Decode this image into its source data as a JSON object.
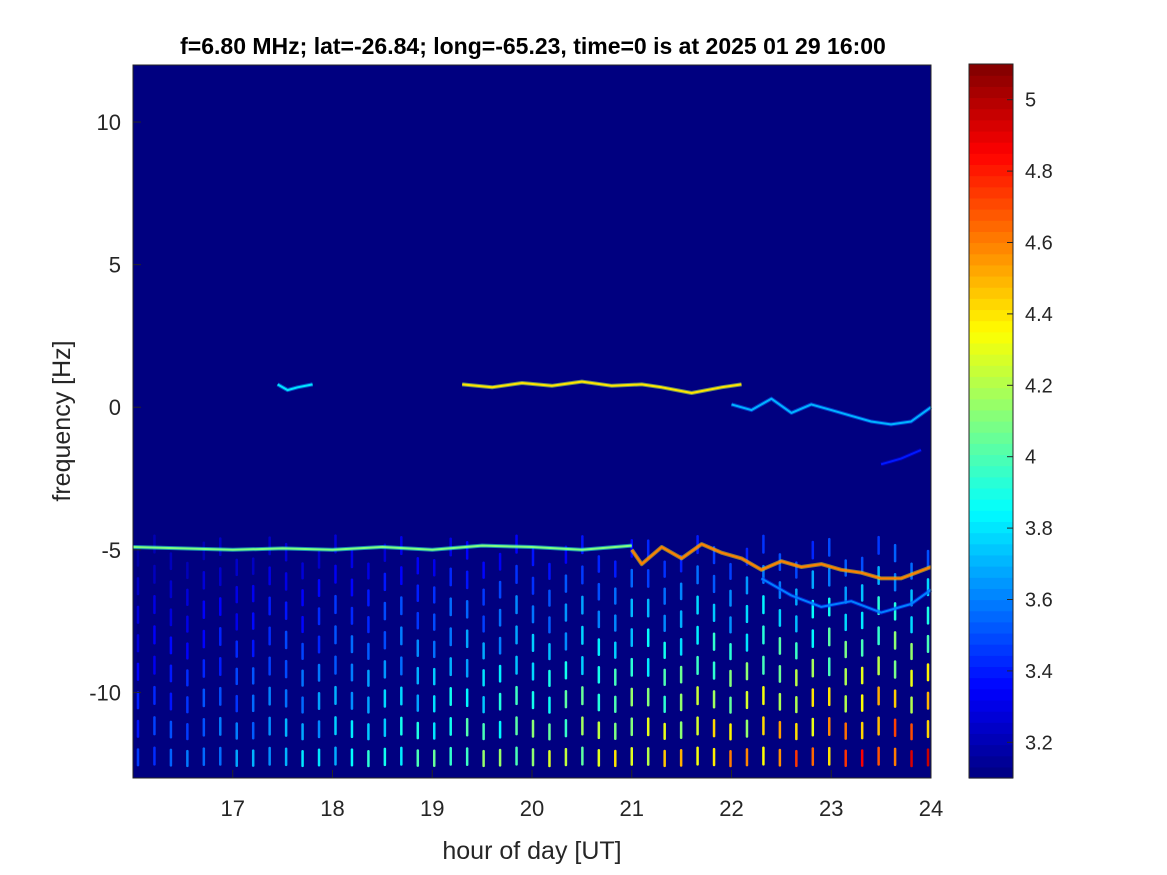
{
  "chart_data": {
    "type": "heatmap",
    "title": "f=6.80 MHz;  lat=-26.84; long=-65.23, time=0 is at 2025 01 29 16:00",
    "xlabel": "hour of day [UT]",
    "ylabel": "frequency [Hz]",
    "xlim": [
      16,
      24
    ],
    "ylim": [
      -13,
      12
    ],
    "x_ticks": [
      17,
      18,
      19,
      20,
      21,
      22,
      23,
      24
    ],
    "y_ticks": [
      -10,
      -5,
      0,
      5,
      10
    ],
    "colormap": "jet",
    "clim": [
      3.1,
      5.1
    ],
    "colorbar_ticks": [
      3.2,
      3.4,
      3.6,
      3.8,
      4,
      4.2,
      4.4,
      4.6,
      4.8,
      5
    ],
    "background_level": 3.1,
    "traces": [
      {
        "x": [
          17.45,
          17.55,
          17.65,
          17.8
        ],
        "y": [
          0.8,
          0.6,
          0.7,
          0.8
        ],
        "level": 3.8
      },
      {
        "x": [
          19.3,
          19.6,
          19.9,
          20.2,
          20.5,
          20.8,
          21.1,
          21.3,
          21.6,
          21.9,
          22.1
        ],
        "y": [
          0.8,
          0.7,
          0.85,
          0.75,
          0.9,
          0.75,
          0.8,
          0.7,
          0.5,
          0.7,
          0.8
        ],
        "level": 4.4
      },
      {
        "x": [
          22.0,
          22.2,
          22.4,
          22.6,
          22.8,
          23.0,
          23.2,
          23.4,
          23.6,
          23.8,
          24.0
        ],
        "y": [
          0.1,
          -0.1,
          0.3,
          -0.2,
          0.1,
          -0.1,
          -0.3,
          -0.5,
          -0.6,
          -0.5,
          0.0
        ],
        "level": 3.7
      },
      {
        "x": [
          16.0,
          16.5,
          17.0,
          17.5,
          18.0,
          18.5,
          19.0,
          19.5,
          20.0,
          20.5,
          21.0
        ],
        "y": [
          -4.9,
          -4.95,
          -5.0,
          -4.95,
          -5.0,
          -4.9,
          -5.0,
          -4.85,
          -4.9,
          -5.0,
          -4.85
        ],
        "level": 4.1
      },
      {
        "x": [
          21.0,
          21.1,
          21.3,
          21.5,
          21.7,
          21.9,
          22.1,
          22.3,
          22.5,
          22.7,
          22.9,
          23.1,
          23.3,
          23.5,
          23.7,
          24.0
        ],
        "y": [
          -5.0,
          -5.5,
          -4.9,
          -5.3,
          -4.8,
          -5.1,
          -5.3,
          -5.7,
          -5.4,
          -5.6,
          -5.5,
          -5.7,
          -5.8,
          -6.0,
          -6.0,
          -5.6
        ],
        "level": 4.6
      },
      {
        "x": [
          22.3,
          22.6,
          22.9,
          23.2,
          23.5,
          23.8,
          24.0
        ],
        "y": [
          -6.0,
          -6.6,
          -7.0,
          -6.8,
          -7.2,
          -6.9,
          -6.4
        ],
        "level": 3.6
      },
      {
        "x": [
          23.5,
          23.7,
          23.9
        ],
        "y": [
          -2.0,
          -1.8,
          -1.5
        ],
        "level": 3.4
      }
    ],
    "harmonics": {
      "x_start": 16.05,
      "x_end": 24.0,
      "spacing_hours": 0.165,
      "y_top": -5.0,
      "y_bottom": -13.0,
      "peak_level_start": 3.5,
      "peak_level_end": 5.0
    }
  }
}
